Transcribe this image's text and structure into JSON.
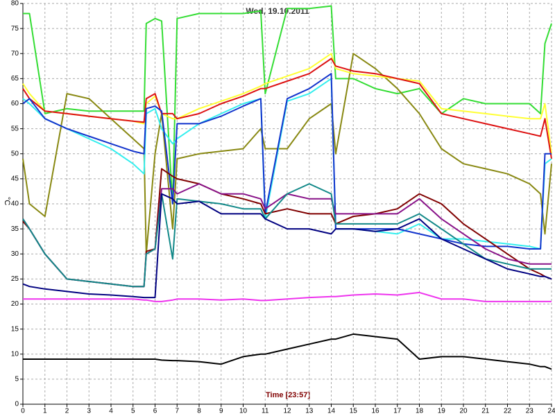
{
  "chart_data": {
    "type": "line",
    "title": "Wed, 19.10.2011",
    "x_label": "Time [23:57]",
    "y_label": "°C",
    "xlim": [
      0,
      24
    ],
    "ylim": [
      0,
      80
    ],
    "xticks": [
      0,
      1,
      2,
      3,
      4,
      5,
      6,
      7,
      8,
      9,
      10,
      11,
      12,
      13,
      14,
      15,
      16,
      17,
      18,
      19,
      20,
      21,
      22,
      23,
      24
    ],
    "yticks": [
      0,
      5,
      10,
      15,
      20,
      25,
      30,
      35,
      40,
      45,
      50,
      55,
      60,
      65,
      70,
      75,
      80
    ],
    "grid": true,
    "x": [
      0,
      0.3,
      1,
      2,
      3,
      4,
      5,
      5.5,
      5.6,
      6,
      6.3,
      6.8,
      7,
      8,
      9,
      10,
      10.8,
      11,
      12,
      13,
      14,
      14.2,
      15,
      16,
      17,
      18,
      19,
      20,
      21,
      22,
      23,
      23.5,
      23.7,
      24
    ],
    "series": [
      {
        "color": "#000000",
        "values": [
          9,
          9,
          9,
          9,
          9,
          9,
          9,
          9,
          9,
          9,
          8.8,
          8.7,
          8.7,
          8.5,
          8,
          9.5,
          10,
          10,
          11,
          12,
          13,
          13,
          14,
          13.5,
          13,
          9,
          9.5,
          9.5,
          9,
          8.5,
          8,
          7.5,
          7.5,
          7
        ]
      },
      {
        "color": "#ee33ee",
        "values": [
          21,
          21,
          21,
          21,
          21,
          21,
          21,
          20.8,
          20.8,
          20.5,
          20.5,
          20.8,
          21,
          21,
          20.8,
          21,
          20.7,
          20.7,
          21,
          21.3,
          21.5,
          21.5,
          21.8,
          22,
          21.8,
          22.3,
          21,
          21,
          20.5,
          20.5,
          20.5,
          20.5,
          20.5,
          20.5
        ]
      },
      {
        "color": "#33dd33",
        "values": [
          78,
          78,
          58,
          59,
          58.5,
          58.5,
          58.5,
          58.5,
          76,
          77,
          76.5,
          40,
          77,
          78,
          78,
          78,
          78.5,
          62,
          79,
          79,
          79.5,
          65,
          65,
          63,
          62,
          63,
          58,
          61,
          60,
          60,
          60,
          58,
          72,
          76
        ]
      },
      {
        "color": "#888811",
        "values": [
          49,
          40,
          37.5,
          62,
          61,
          57,
          53,
          51,
          30,
          50,
          58,
          35,
          49,
          50,
          50.5,
          51,
          55,
          51,
          51,
          57,
          60,
          50,
          70,
          67,
          63,
          58,
          51,
          48,
          47,
          46,
          44,
          42,
          34,
          48
        ]
      },
      {
        "color": "#ffff33",
        "values": [
          64,
          62,
          58.5,
          58,
          57.5,
          57,
          56.5,
          56,
          60,
          61.5,
          58,
          57,
          57,
          59,
          60.5,
          62,
          63.5,
          64,
          65.5,
          67,
          70,
          67,
          66,
          65.5,
          65,
          64.5,
          59,
          58.5,
          58,
          57.5,
          57,
          57,
          60,
          50
        ]
      },
      {
        "color": "#dd1111",
        "values": [
          63,
          61,
          58.5,
          58,
          57.5,
          57,
          56.5,
          56.3,
          61,
          62,
          58,
          58,
          57,
          58,
          60,
          61.5,
          63,
          63,
          64.5,
          66,
          69,
          67.5,
          66.5,
          66,
          65,
          64,
          58,
          57,
          56,
          55,
          54,
          53.5,
          57,
          49
        ]
      },
      {
        "color": "#33eeee",
        "values": [
          61,
          60,
          57,
          55,
          53,
          51,
          48,
          46,
          58,
          59,
          55,
          52,
          53,
          56,
          58,
          60,
          61,
          37,
          60.5,
          62,
          65,
          35,
          35,
          34.5,
          34,
          36,
          33,
          33,
          32.5,
          32,
          31.5,
          31,
          48,
          49
        ]
      },
      {
        "color": "#1133cc",
        "values": [
          60,
          61,
          57,
          55,
          53.5,
          52,
          50.5,
          50,
          59,
          59.5,
          58.5,
          40,
          56,
          56,
          57.5,
          59.5,
          61,
          38,
          61,
          63,
          66,
          35,
          35,
          35,
          35,
          34,
          33,
          32,
          31.5,
          31.5,
          31,
          31,
          50,
          50
        ]
      },
      {
        "color": "#800000",
        "values": [
          36.5,
          35,
          30,
          25,
          24.5,
          24,
          23.5,
          23.5,
          30.5,
          31,
          47,
          45.5,
          45,
          44,
          42,
          41,
          40,
          38,
          39,
          38,
          38,
          36,
          37.5,
          38,
          39,
          42,
          40,
          36,
          33,
          30,
          27,
          26,
          25.5,
          25
        ]
      },
      {
        "color": "#881188",
        "values": [
          37,
          35,
          30,
          25,
          24.5,
          24,
          23.5,
          23.5,
          30,
          31,
          43,
          43,
          42,
          44,
          42,
          42,
          41,
          39,
          42,
          41,
          41,
          38,
          38,
          38,
          38,
          41,
          37,
          34,
          31,
          29,
          28,
          28,
          28,
          28
        ]
      },
      {
        "color": "#118888",
        "values": [
          37,
          35,
          30,
          25,
          24.5,
          24,
          23.5,
          23.5,
          30,
          31,
          42,
          29,
          41,
          40.5,
          40,
          39,
          39,
          37,
          42,
          44,
          42,
          36,
          36,
          36,
          36,
          38,
          35,
          32,
          29,
          28,
          27,
          27,
          27,
          27
        ]
      },
      {
        "color": "#000080",
        "values": [
          24,
          23.5,
          23,
          22.5,
          22,
          21.8,
          21.5,
          21.3,
          21.3,
          21.3,
          42,
          41,
          40,
          40.5,
          38,
          38,
          38,
          37,
          35,
          35,
          34,
          35,
          35,
          34.5,
          35,
          37,
          33,
          31,
          29,
          27,
          26,
          25.5,
          25.5,
          25
        ]
      }
    ]
  }
}
